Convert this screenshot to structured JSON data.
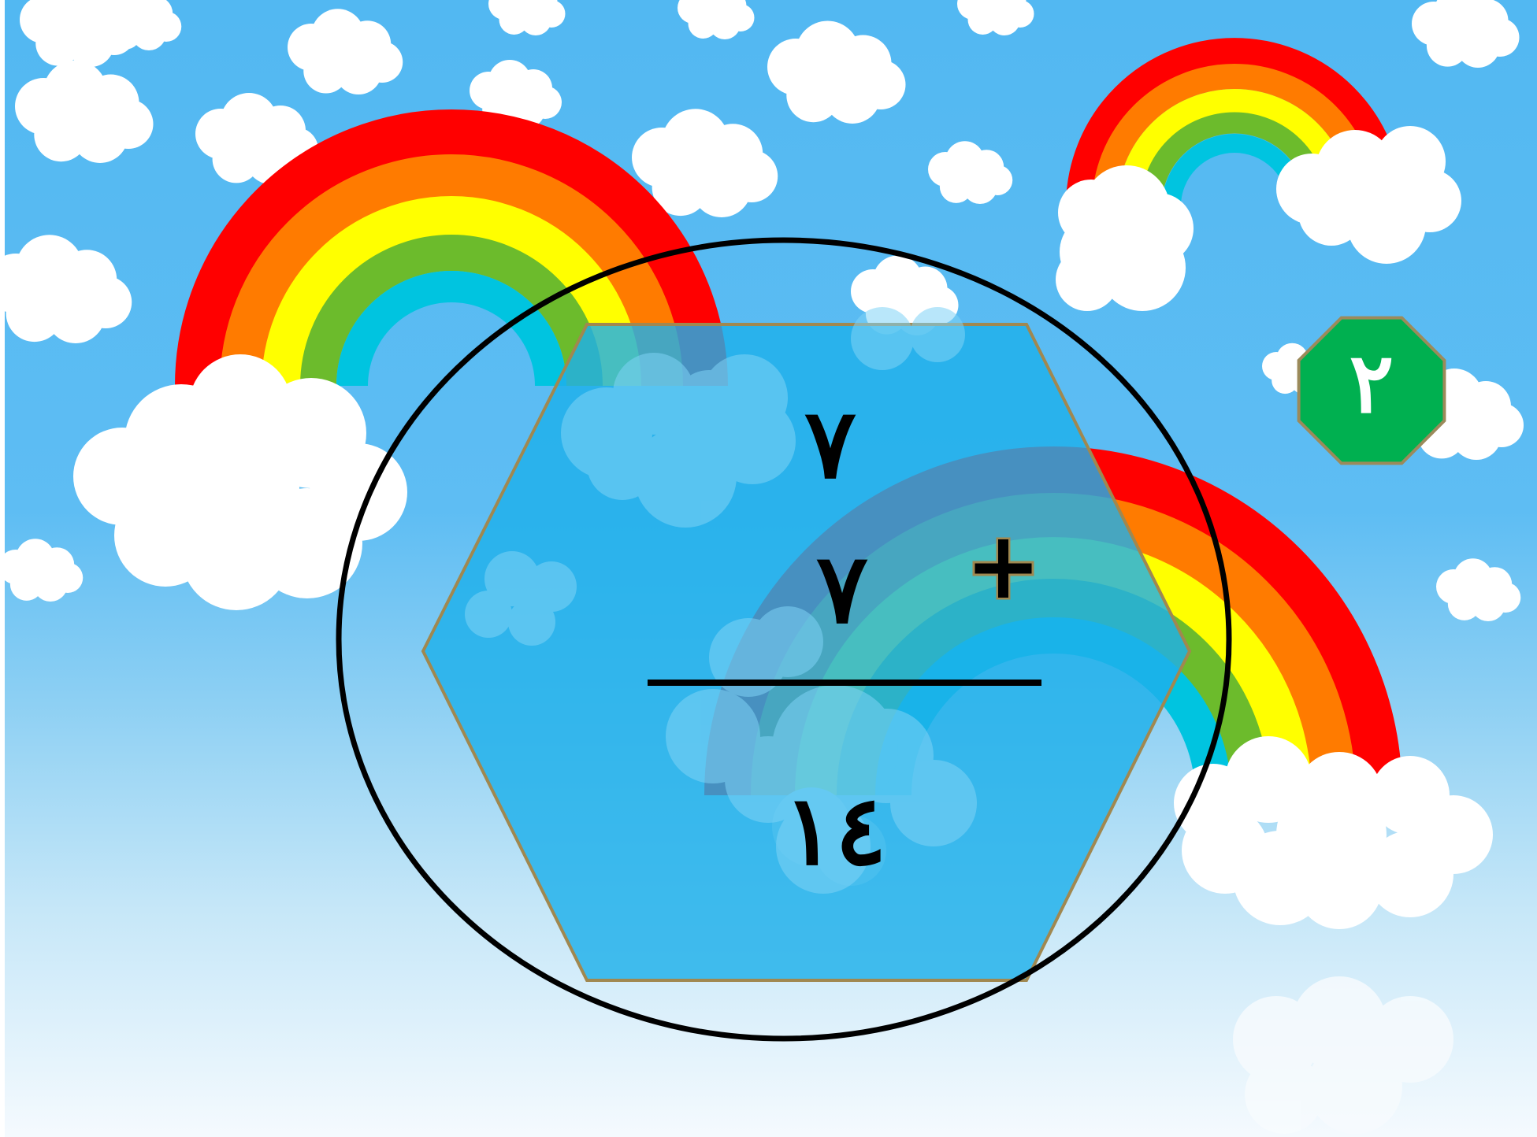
{
  "problem": {
    "addend_1": "٧",
    "addend_2": "٧",
    "operator": "+",
    "result": "١٤"
  },
  "slide_badge": {
    "number": "٢"
  },
  "colors": {
    "sky_top": "#4fb6ef",
    "sky_bottom": "#f4f9fd",
    "rainbow": [
      "#ff0000",
      "#ff7b00",
      "#ffff00",
      "#6cbb2c",
      "#00c4e0"
    ],
    "hexagon_fill": "#1fb0ea",
    "hexagon_stroke": "#a08850",
    "badge_fill": "#00b050",
    "badge_stroke": "#9c8a5a"
  }
}
